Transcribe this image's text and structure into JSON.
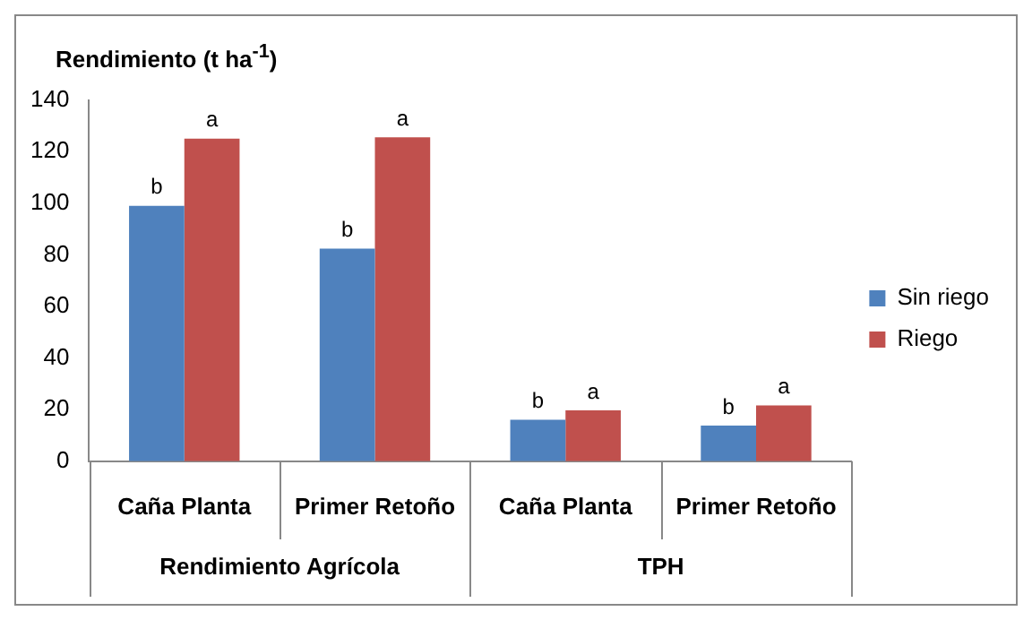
{
  "chart_data": {
    "type": "bar",
    "ylabel": "Rendimiento (t ha$^{-1}$)",
    "categories": [
      "Caña Planta",
      "Primer Retoño",
      "Caña Planta",
      "Primer Retoño"
    ],
    "series": [
      {
        "name": "Sin riego",
        "color": "#4f81bd",
        "values": [
          99,
          82.4,
          16.1,
          13.8
        ],
        "value_labels": [
          "b",
          "b",
          "b",
          "b"
        ]
      },
      {
        "name": "Riego",
        "color": "#c0504d",
        "values": [
          125,
          125.5,
          19.7,
          21.6
        ],
        "value_labels": [
          "a",
          "a",
          "a",
          "a"
        ]
      }
    ],
    "annotations": [
      "Rendimiento Agrícola",
      "TPH"
    ],
    "ylim": [
      0,
      140
    ],
    "yticks": [
      0,
      20,
      40,
      60,
      80,
      100,
      120,
      140
    ],
    "grid": false,
    "legend": "right"
  }
}
